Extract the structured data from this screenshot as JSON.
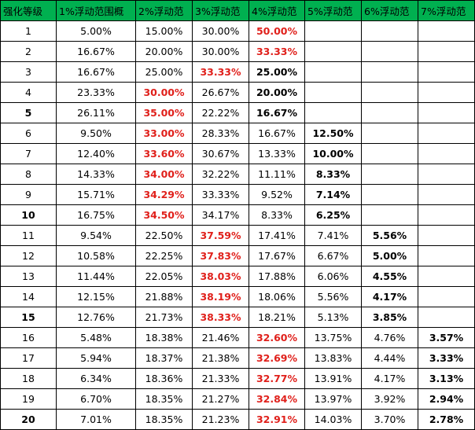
{
  "headers": [
    "强化等级",
    "1%浮动范围概",
    "2%浮动范",
    "3%浮动范",
    "4%浮动范",
    "5%浮动范",
    "6%浮动范",
    "7%浮动范"
  ],
  "colors": {
    "header_bg": "#00b050",
    "highlight_text": "#e0201b",
    "border": "#000000"
  },
  "rows": [
    {
      "level": "1",
      "level_bold": false,
      "cells": [
        {
          "v": "5.00%"
        },
        {
          "v": "15.00%"
        },
        {
          "v": "30.00%"
        },
        {
          "v": "50.00%",
          "s": "red"
        },
        {
          "v": ""
        },
        {
          "v": ""
        },
        {
          "v": ""
        }
      ]
    },
    {
      "level": "2",
      "level_bold": false,
      "cells": [
        {
          "v": "16.67%"
        },
        {
          "v": "20.00%"
        },
        {
          "v": "30.00%"
        },
        {
          "v": "33.33%",
          "s": "red"
        },
        {
          "v": ""
        },
        {
          "v": ""
        },
        {
          "v": ""
        }
      ]
    },
    {
      "level": "3",
      "level_bold": false,
      "cells": [
        {
          "v": "16.67%"
        },
        {
          "v": "25.00%"
        },
        {
          "v": "33.33%",
          "s": "red"
        },
        {
          "v": "25.00%",
          "s": "bold"
        },
        {
          "v": ""
        },
        {
          "v": ""
        },
        {
          "v": ""
        }
      ]
    },
    {
      "level": "4",
      "level_bold": false,
      "cells": [
        {
          "v": "23.33%"
        },
        {
          "v": "30.00%",
          "s": "red"
        },
        {
          "v": "26.67%"
        },
        {
          "v": "20.00%",
          "s": "bold"
        },
        {
          "v": ""
        },
        {
          "v": ""
        },
        {
          "v": ""
        }
      ]
    },
    {
      "level": "5",
      "level_bold": true,
      "cells": [
        {
          "v": "26.11%"
        },
        {
          "v": "35.00%",
          "s": "red"
        },
        {
          "v": "22.22%"
        },
        {
          "v": "16.67%",
          "s": "bold"
        },
        {
          "v": ""
        },
        {
          "v": ""
        },
        {
          "v": ""
        }
      ]
    },
    {
      "level": "6",
      "level_bold": false,
      "cells": [
        {
          "v": "9.50%"
        },
        {
          "v": "33.00%",
          "s": "red"
        },
        {
          "v": "28.33%"
        },
        {
          "v": "16.67%"
        },
        {
          "v": "12.50%",
          "s": "bold"
        },
        {
          "v": ""
        },
        {
          "v": ""
        }
      ]
    },
    {
      "level": "7",
      "level_bold": false,
      "cells": [
        {
          "v": "12.40%"
        },
        {
          "v": "33.60%",
          "s": "red"
        },
        {
          "v": "30.67%"
        },
        {
          "v": "13.33%"
        },
        {
          "v": "10.00%",
          "s": "bold"
        },
        {
          "v": ""
        },
        {
          "v": ""
        }
      ]
    },
    {
      "level": "8",
      "level_bold": false,
      "cells": [
        {
          "v": "14.33%"
        },
        {
          "v": "34.00%",
          "s": "red"
        },
        {
          "v": "32.22%"
        },
        {
          "v": "11.11%"
        },
        {
          "v": "8.33%",
          "s": "bold"
        },
        {
          "v": ""
        },
        {
          "v": ""
        }
      ]
    },
    {
      "level": "9",
      "level_bold": false,
      "cells": [
        {
          "v": "15.71%"
        },
        {
          "v": "34.29%",
          "s": "red"
        },
        {
          "v": "33.33%"
        },
        {
          "v": "9.52%"
        },
        {
          "v": "7.14%",
          "s": "bold"
        },
        {
          "v": ""
        },
        {
          "v": ""
        }
      ]
    },
    {
      "level": "10",
      "level_bold": true,
      "cells": [
        {
          "v": "16.75%"
        },
        {
          "v": "34.50%",
          "s": "red"
        },
        {
          "v": "34.17%"
        },
        {
          "v": "8.33%"
        },
        {
          "v": "6.25%",
          "s": "bold"
        },
        {
          "v": ""
        },
        {
          "v": ""
        }
      ]
    },
    {
      "level": "11",
      "level_bold": false,
      "cells": [
        {
          "v": "9.54%"
        },
        {
          "v": "22.50%"
        },
        {
          "v": "37.59%",
          "s": "red"
        },
        {
          "v": "17.41%"
        },
        {
          "v": "7.41%"
        },
        {
          "v": "5.56%",
          "s": "bold"
        },
        {
          "v": ""
        }
      ]
    },
    {
      "level": "12",
      "level_bold": false,
      "cells": [
        {
          "v": "10.58%"
        },
        {
          "v": "22.25%"
        },
        {
          "v": "37.83%",
          "s": "red"
        },
        {
          "v": "17.67%"
        },
        {
          "v": "6.67%"
        },
        {
          "v": "5.00%",
          "s": "bold"
        },
        {
          "v": ""
        }
      ]
    },
    {
      "level": "13",
      "level_bold": false,
      "cells": [
        {
          "v": "11.44%"
        },
        {
          "v": "22.05%"
        },
        {
          "v": "38.03%",
          "s": "red"
        },
        {
          "v": "17.88%"
        },
        {
          "v": "6.06%"
        },
        {
          "v": "4.55%",
          "s": "bold"
        },
        {
          "v": ""
        }
      ]
    },
    {
      "level": "14",
      "level_bold": false,
      "cells": [
        {
          "v": "12.15%"
        },
        {
          "v": "21.88%"
        },
        {
          "v": "38.19%",
          "s": "red"
        },
        {
          "v": "18.06%"
        },
        {
          "v": "5.56%"
        },
        {
          "v": "4.17%",
          "s": "bold"
        },
        {
          "v": ""
        }
      ]
    },
    {
      "level": "15",
      "level_bold": true,
      "cells": [
        {
          "v": "12.76%"
        },
        {
          "v": "21.73%"
        },
        {
          "v": "38.33%",
          "s": "red"
        },
        {
          "v": "18.21%"
        },
        {
          "v": "5.13%"
        },
        {
          "v": "3.85%",
          "s": "bold"
        },
        {
          "v": ""
        }
      ]
    },
    {
      "level": "16",
      "level_bold": false,
      "cells": [
        {
          "v": "5.48%"
        },
        {
          "v": "18.38%"
        },
        {
          "v": "21.46%"
        },
        {
          "v": "32.60%",
          "s": "red"
        },
        {
          "v": "13.75%"
        },
        {
          "v": "4.76%"
        },
        {
          "v": "3.57%",
          "s": "bold"
        }
      ]
    },
    {
      "level": "17",
      "level_bold": false,
      "cells": [
        {
          "v": "5.94%"
        },
        {
          "v": "18.37%"
        },
        {
          "v": "21.38%"
        },
        {
          "v": "32.69%",
          "s": "red"
        },
        {
          "v": "13.83%"
        },
        {
          "v": "4.44%"
        },
        {
          "v": "3.33%",
          "s": "bold"
        }
      ]
    },
    {
      "level": "18",
      "level_bold": false,
      "cells": [
        {
          "v": "6.34%"
        },
        {
          "v": "18.36%"
        },
        {
          "v": "21.33%"
        },
        {
          "v": "32.77%",
          "s": "red"
        },
        {
          "v": "13.91%"
        },
        {
          "v": "4.17%"
        },
        {
          "v": "3.13%",
          "s": "bold"
        }
      ]
    },
    {
      "level": "19",
      "level_bold": false,
      "cells": [
        {
          "v": "6.70%"
        },
        {
          "v": "18.35%"
        },
        {
          "v": "21.27%"
        },
        {
          "v": "32.84%",
          "s": "red"
        },
        {
          "v": "13.97%"
        },
        {
          "v": "3.92%"
        },
        {
          "v": "2.94%",
          "s": "bold"
        }
      ]
    },
    {
      "level": "20",
      "level_bold": true,
      "cells": [
        {
          "v": "7.01%"
        },
        {
          "v": "18.35%"
        },
        {
          "v": "21.23%"
        },
        {
          "v": "32.91%",
          "s": "red"
        },
        {
          "v": "14.03%"
        },
        {
          "v": "3.70%"
        },
        {
          "v": "2.78%",
          "s": "bold"
        }
      ]
    }
  ]
}
